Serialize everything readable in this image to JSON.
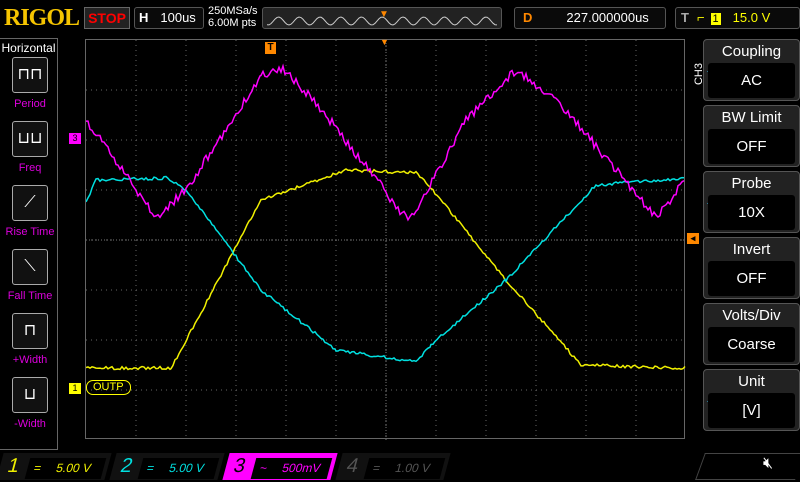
{
  "header": {
    "brand": "RIGOL",
    "run_state": "STOP",
    "h_label": "H",
    "timebase": "100us",
    "sample_rate": "250MSa/s",
    "memory_depth": "6.00M pts",
    "d_label": "D",
    "delay": "227.000000us",
    "t_label": "T",
    "trigger_source": "1",
    "trigger_level": "15.0 V",
    "trigger_edge_icon": "rising-edge-icon"
  },
  "left_menu": {
    "title": "Horizontal",
    "items": [
      {
        "label": "Period"
      },
      {
        "label": "Freq"
      },
      {
        "label": "Rise Time"
      },
      {
        "label": "Fall Time"
      },
      {
        "label": "+Width"
      },
      {
        "label": "-Width"
      }
    ]
  },
  "right_menu": {
    "channel": "CH3",
    "items": [
      {
        "title": "Coupling",
        "value": "AC"
      },
      {
        "title": "BW Limit",
        "value": "OFF"
      },
      {
        "title": "Probe",
        "value": "10X"
      },
      {
        "title": "Invert",
        "value": "OFF"
      },
      {
        "title": "Volts/Div",
        "value": "Coarse"
      },
      {
        "title": "Unit",
        "value": "[V]"
      }
    ]
  },
  "markers": {
    "ch1_label": "OUTP",
    "ch1": "1",
    "ch3": "3",
    "trigger": "T"
  },
  "channels": [
    {
      "num": "1",
      "coupling": "=",
      "scale": "5.00 V",
      "color": "#f0f000"
    },
    {
      "num": "2",
      "coupling": "=",
      "scale": "5.00 V",
      "color": "#00e0e0"
    },
    {
      "num": "3",
      "coupling": "~",
      "scale": "500mV",
      "color": "#ff00ff"
    },
    {
      "num": "4",
      "coupling": "=",
      "scale": "1.00 V",
      "color": "#555555"
    }
  ],
  "status": {
    "sound_icon": "speaker-muted-icon"
  }
}
